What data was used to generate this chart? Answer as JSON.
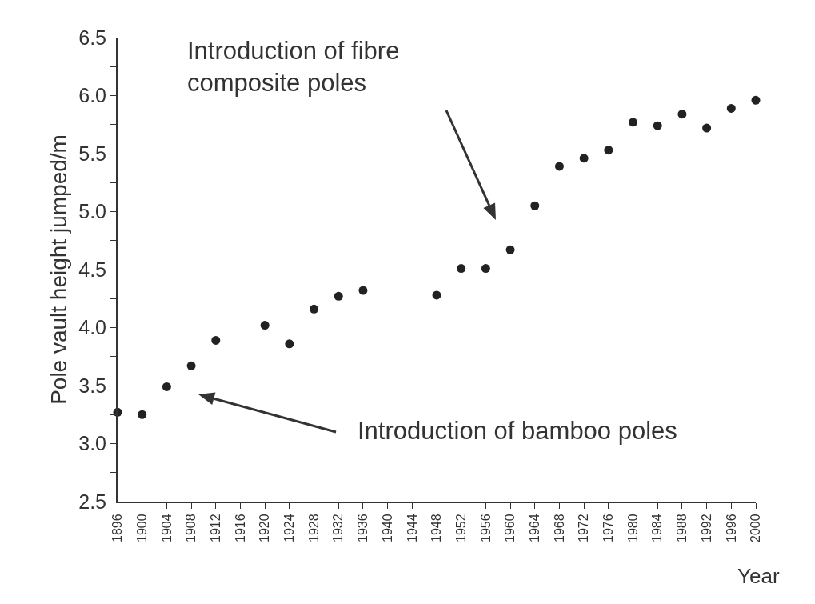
{
  "chart_data": {
    "type": "scatter",
    "xlabel": "Year",
    "ylabel": "Pole vault height jumped/m",
    "x": [
      1896,
      1900,
      1904,
      1908,
      1912,
      1920,
      1924,
      1928,
      1932,
      1936,
      1948,
      1952,
      1956,
      1960,
      1964,
      1968,
      1972,
      1976,
      1980,
      1984,
      1988,
      1992,
      1996,
      2000
    ],
    "values": [
      3.27,
      3.25,
      3.49,
      3.67,
      3.89,
      4.02,
      3.86,
      4.16,
      4.27,
      4.32,
      4.28,
      4.51,
      4.51,
      4.67,
      5.05,
      5.39,
      5.46,
      5.53,
      5.77,
      5.74,
      5.84,
      5.72,
      5.89,
      5.96
    ],
    "color": "#222222",
    "marker": "circle",
    "grid": false,
    "xlim": [
      1896,
      2000
    ],
    "xticks": [
      1896,
      1900,
      1904,
      1908,
      1912,
      1916,
      1920,
      1924,
      1928,
      1932,
      1936,
      1940,
      1944,
      1948,
      1952,
      1956,
      1960,
      1964,
      1968,
      1972,
      1976,
      1980,
      1984,
      1988,
      1992,
      1996,
      2000
    ],
    "ylim": [
      2.5,
      6.5
    ],
    "yticks": [
      2.5,
      {
        "value": 2.75,
        "label": null
      },
      "3.0",
      {
        "value": 3.25,
        "label": null
      },
      3.5,
      {
        "value": 3.75,
        "label": null
      },
      "4.0",
      {
        "value": 4.25,
        "label": null
      },
      4.5,
      {
        "value": 4.75,
        "label": null
      },
      "5.0",
      {
        "value": 5.25,
        "label": null
      },
      5.5,
      {
        "value": 5.75,
        "label": null
      },
      "6.0",
      {
        "value": 6.25,
        "label": null
      },
      6.5
    ],
    "annotations": [
      "Introduction of bamboo poles",
      "Introduction of fibre\ncomposite poles"
    ]
  }
}
